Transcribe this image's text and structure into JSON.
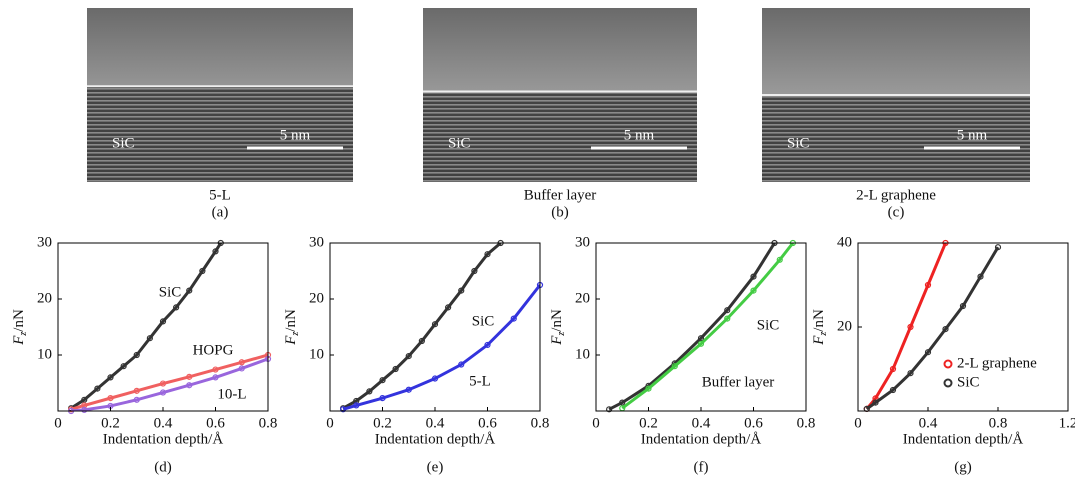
{
  "images": [
    {
      "label": "SiC",
      "scale": "5 nm",
      "caption": "5-L",
      "panel": "(a)"
    },
    {
      "label": "SiC",
      "scale": "5 nm",
      "caption": "Buffer layer",
      "panel": "(b)"
    },
    {
      "label": "SiC",
      "scale": "5 nm",
      "caption": "2-L graphene",
      "panel": "(c)"
    }
  ],
  "chart_data": [
    {
      "type": "line",
      "panel": "(d)",
      "xlabel": "Indentation depth/Å",
      "ylabel": {
        "symbol": "F",
        "subscript": "z",
        "unit": "/nN"
      },
      "xlim": [
        0,
        0.8
      ],
      "ylim": [
        0,
        30
      ],
      "xticks": [
        0,
        0.2,
        0.4,
        0.6,
        0.8
      ],
      "yticks": [
        10,
        20,
        30
      ],
      "annotations": [
        "SiC",
        "HOPG",
        "10-L"
      ],
      "series": [
        {
          "name": "SiC",
          "color": "#333333",
          "x": [
            0.05,
            0.1,
            0.15,
            0.2,
            0.25,
            0.3,
            0.35,
            0.4,
            0.45,
            0.5,
            0.55,
            0.6,
            0.62
          ],
          "values": [
            0.5,
            2,
            4,
            6,
            8,
            10,
            13,
            16,
            18.5,
            21.5,
            25,
            28.5,
            30
          ]
        },
        {
          "name": "HOPG",
          "color": "#f06060",
          "x": [
            0.05,
            0.1,
            0.2,
            0.3,
            0.4,
            0.5,
            0.6,
            0.7,
            0.8
          ],
          "values": [
            0.3,
            1,
            2.3,
            3.6,
            4.9,
            6.1,
            7.4,
            8.7,
            10
          ]
        },
        {
          "name": "10-L",
          "color": "#9966dd",
          "x": [
            0.05,
            0.1,
            0.2,
            0.3,
            0.4,
            0.5,
            0.6,
            0.7,
            0.8
          ],
          "values": [
            0,
            0.2,
            0.9,
            2,
            3.3,
            4.6,
            6,
            7.6,
            9.3
          ]
        }
      ]
    },
    {
      "type": "line",
      "panel": "(e)",
      "xlabel": "Indentation depth/Å",
      "ylabel": {
        "symbol": "F",
        "subscript": "z",
        "unit": "/nN"
      },
      "xlim": [
        0,
        0.8
      ],
      "ylim": [
        0,
        30
      ],
      "xticks": [
        0,
        0.2,
        0.4,
        0.6,
        0.8
      ],
      "yticks": [
        10,
        20,
        30
      ],
      "annotations": [
        "SiC",
        "5-L"
      ],
      "series": [
        {
          "name": "SiC",
          "color": "#333333",
          "x": [
            0.05,
            0.1,
            0.15,
            0.2,
            0.25,
            0.3,
            0.35,
            0.4,
            0.45,
            0.5,
            0.55,
            0.6,
            0.65
          ],
          "values": [
            0.5,
            1.8,
            3.5,
            5.5,
            7.5,
            9.8,
            12.5,
            15.5,
            18.5,
            21.5,
            25,
            28,
            30
          ]
        },
        {
          "name": "5-L",
          "color": "#3333dd",
          "x": [
            0.05,
            0.1,
            0.2,
            0.3,
            0.4,
            0.5,
            0.6,
            0.7,
            0.8
          ],
          "values": [
            0.3,
            1,
            2.3,
            3.8,
            5.8,
            8.3,
            11.8,
            16.5,
            22.5
          ]
        }
      ]
    },
    {
      "type": "line",
      "panel": "(f)",
      "xlabel": "Indentation depth/Å",
      "ylabel": {
        "symbol": "F",
        "subscript": "z",
        "unit": "/nN"
      },
      "xlim": [
        0,
        0.8
      ],
      "ylim": [
        0,
        30
      ],
      "xticks": [
        0,
        0.2,
        0.4,
        0.6,
        0.8
      ],
      "yticks": [
        10,
        20,
        30
      ],
      "annotations": [
        "SiC",
        "Buffer layer"
      ],
      "series": [
        {
          "name": "SiC",
          "color": "#333333",
          "x": [
            0.05,
            0.1,
            0.2,
            0.3,
            0.4,
            0.5,
            0.6,
            0.68
          ],
          "values": [
            0.3,
            1.5,
            4.5,
            8.5,
            13,
            18,
            24,
            30
          ]
        },
        {
          "name": "Buffer layer",
          "color": "#44cc44",
          "x": [
            0.1,
            0.2,
            0.3,
            0.4,
            0.5,
            0.6,
            0.7,
            0.75
          ],
          "values": [
            0.5,
            4,
            8,
            12,
            16.5,
            21.5,
            27,
            30
          ]
        }
      ]
    },
    {
      "type": "line",
      "panel": "(g)",
      "xlabel": "Indentation depth/Å",
      "ylabel": {
        "symbol": "F",
        "subscript": "z",
        "unit": "/nN"
      },
      "xlim": [
        0,
        1.2
      ],
      "ylim": [
        0,
        40
      ],
      "xticks": [
        0,
        0.4,
        0.8,
        1.2
      ],
      "yticks": [
        20,
        40
      ],
      "legend": true,
      "series": [
        {
          "name": "2-L graphene",
          "color": "#ee2222",
          "x": [
            0.05,
            0.1,
            0.2,
            0.3,
            0.4,
            0.5
          ],
          "values": [
            0.5,
            3,
            10,
            20,
            30,
            40
          ]
        },
        {
          "name": "SiC",
          "color": "#333333",
          "x": [
            0.05,
            0.1,
            0.2,
            0.3,
            0.4,
            0.5,
            0.6,
            0.7,
            0.8
          ],
          "values": [
            0.5,
            2,
            5,
            9,
            14,
            19.5,
            25,
            32,
            39
          ]
        }
      ]
    }
  ]
}
